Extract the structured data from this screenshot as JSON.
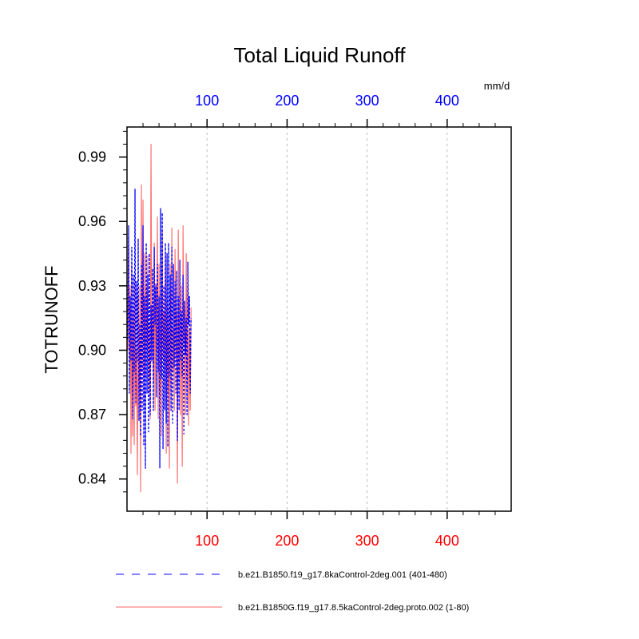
{
  "chart_data": {
    "type": "line",
    "title": "Total Liquid Runoff",
    "ylabel": "TOTRUNOFF",
    "units_label": "mm/d",
    "xlim": [
      0,
      480
    ],
    "ylim": [
      0.825,
      1.004
    ],
    "yticks": [
      0.84,
      0.87,
      0.9,
      0.93,
      0.96,
      0.99
    ],
    "ytick_labels": [
      "0.84",
      "0.87",
      "0.90",
      "0.93",
      "0.96",
      "0.99"
    ],
    "xticks": [
      100,
      200,
      300,
      400
    ],
    "xtick_labels": [
      "100",
      "200",
      "300",
      "400"
    ],
    "top_axis_color": "#0000ff",
    "bottom_axis_color": "#ff0000",
    "grid_color": "#bbbbbb",
    "series": [
      {
        "name": "b.e21.B1850.f19_g17.8kaControl-2deg.001 (401-480)",
        "color": "#0000ff",
        "style": "dashed",
        "x": [
          1,
          2,
          3,
          4,
          5,
          6,
          7,
          8,
          9,
          10,
          11,
          12,
          13,
          14,
          15,
          16,
          17,
          18,
          19,
          20,
          21,
          22,
          23,
          24,
          25,
          26,
          27,
          28,
          29,
          30,
          31,
          32,
          33,
          34,
          35,
          36,
          37,
          38,
          39,
          40,
          41,
          42,
          43,
          44,
          45,
          46,
          47,
          48,
          49,
          50,
          51,
          52,
          53,
          54,
          55,
          56,
          57,
          58,
          59,
          60,
          61,
          62,
          63,
          64,
          65,
          66,
          67,
          68,
          69,
          70,
          71,
          72,
          73,
          74,
          75,
          76,
          77,
          78,
          79,
          80
        ],
        "values": [
          0.905,
          0.958,
          0.88,
          0.925,
          0.895,
          0.948,
          0.868,
          0.935,
          0.89,
          0.975,
          0.875,
          0.932,
          0.895,
          0.952,
          0.867,
          0.912,
          0.86,
          0.94,
          0.872,
          0.958,
          0.856,
          0.925,
          0.845,
          0.95,
          0.88,
          0.935,
          0.862,
          0.945,
          0.87,
          0.921,
          0.895,
          0.938,
          0.872,
          0.948,
          0.912,
          0.93,
          0.878,
          0.94,
          0.89,
          0.925,
          0.845,
          0.966,
          0.887,
          0.964,
          0.854,
          0.93,
          0.872,
          0.95,
          0.866,
          0.945,
          0.855,
          0.95,
          0.888,
          0.935,
          0.872,
          0.948,
          0.866,
          0.94,
          0.892,
          0.932,
          0.88,
          0.937,
          0.858,
          0.925,
          0.872,
          0.942,
          0.895,
          0.918,
          0.888,
          0.935,
          0.861,
          0.923,
          0.898,
          0.915,
          0.87,
          0.941,
          0.912,
          0.925,
          0.88,
          0.915
        ]
      },
      {
        "name": "b.e21.B1850G.f19_g17.8.5kaControl-2deg.proto.002 (1-80)",
        "color": "#ff6666",
        "style": "solid",
        "x": [
          1,
          2,
          3,
          4,
          5,
          6,
          7,
          8,
          9,
          10,
          11,
          12,
          13,
          14,
          15,
          16,
          17,
          18,
          19,
          20,
          21,
          22,
          23,
          24,
          25,
          26,
          27,
          28,
          29,
          30,
          31,
          32,
          33,
          34,
          35,
          36,
          37,
          38,
          39,
          40,
          41,
          42,
          43,
          44,
          45,
          46,
          47,
          48,
          49,
          50,
          51,
          52,
          53,
          54,
          55,
          56,
          57,
          58,
          59,
          60,
          61,
          62,
          63,
          64,
          65,
          66,
          67,
          68,
          69,
          70,
          71,
          72,
          73,
          74,
          75,
          76,
          77,
          78,
          79,
          80
        ],
        "values": [
          0.9,
          0.953,
          0.895,
          0.93,
          0.852,
          0.94,
          0.86,
          0.918,
          0.856,
          0.932,
          0.874,
          0.9,
          0.842,
          0.925,
          0.868,
          0.93,
          0.834,
          0.977,
          0.89,
          0.97,
          0.875,
          0.945,
          0.888,
          0.93,
          0.9,
          0.944,
          0.88,
          0.912,
          0.868,
          0.996,
          0.898,
          0.92,
          0.885,
          0.95,
          0.872,
          0.931,
          0.9,
          0.962,
          0.868,
          0.94,
          0.88,
          0.927,
          0.86,
          0.955,
          0.896,
          0.918,
          0.89,
          0.945,
          0.852,
          0.938,
          0.88,
          0.92,
          0.845,
          0.94,
          0.872,
          0.957,
          0.89,
          0.91,
          0.872,
          0.947,
          0.896,
          0.918,
          0.838,
          0.956,
          0.888,
          0.925,
          0.87,
          0.93,
          0.846,
          0.958,
          0.903,
          0.92,
          0.87,
          0.945,
          0.875,
          0.93,
          0.865,
          0.91,
          0.872,
          0.92
        ]
      }
    ]
  }
}
